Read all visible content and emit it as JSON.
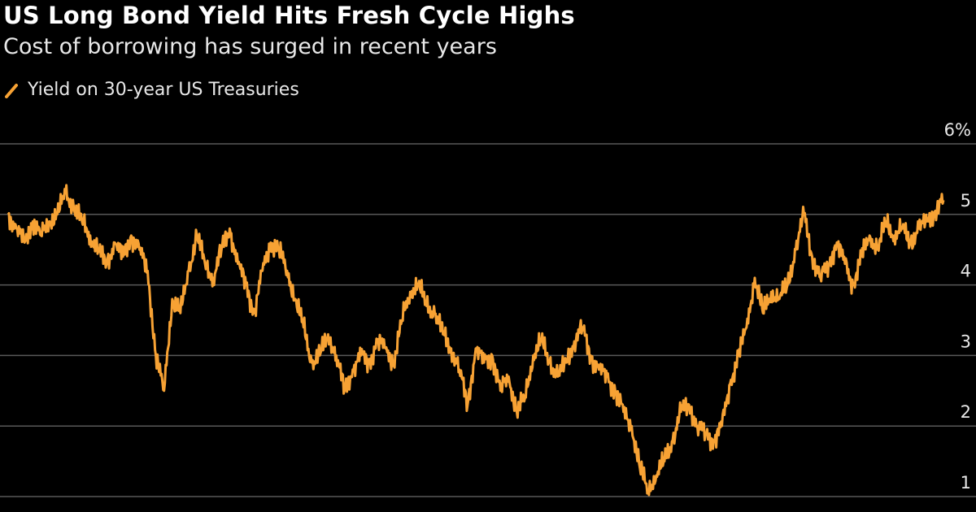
{
  "title": "US Long Bond Yield Hits Fresh Cycle Highs",
  "subtitle": "Cost of borrowing has surged in recent years",
  "colors": {
    "background": "#000000",
    "series": "#f7a234",
    "grid": "#595959",
    "text": "#e8e8e8"
  },
  "chart_data": {
    "type": "line",
    "title": "US Long Bond Yield Hits Fresh Cycle Highs",
    "subtitle": "Cost of borrowing has surged in recent years",
    "xlabel": "",
    "ylabel": "",
    "ylim": [
      1,
      6
    ],
    "yticks": [
      {
        "value": 6,
        "label": "6%"
      },
      {
        "value": 5,
        "label": "5"
      },
      {
        "value": 4,
        "label": "4"
      },
      {
        "value": 3,
        "label": "3"
      },
      {
        "value": 2,
        "label": "2"
      },
      {
        "value": 1,
        "label": "1"
      }
    ],
    "grid": true,
    "legend_position": "top-left",
    "series": [
      {
        "name": "Yield on 30-year US Treasuries",
        "color": "#f7a234",
        "values": [
          5.0,
          4.8,
          4.6,
          4.9,
          4.7,
          4.9,
          5.0,
          5.3,
          5.1,
          4.9,
          4.7,
          4.5,
          4.3,
          4.6,
          4.4,
          4.7,
          4.5,
          4.2,
          3.0,
          2.5,
          3.8,
          3.6,
          4.2,
          4.7,
          4.3,
          4.1,
          4.5,
          4.8,
          4.3,
          4.0,
          3.6,
          4.2,
          4.6,
          4.5,
          4.2,
          3.8,
          3.4,
          2.9,
          3.0,
          3.3,
          3.0,
          2.5,
          2.8,
          3.0,
          2.9,
          3.2,
          3.1,
          2.9,
          3.5,
          3.9,
          4.0,
          3.7,
          3.6,
          3.3,
          3.1,
          2.8,
          2.3,
          3.1,
          2.9,
          3.0,
          2.5,
          2.7,
          2.2,
          2.4,
          3.0,
          3.2,
          2.9,
          2.7,
          2.9,
          3.2,
          3.4,
          3.0,
          2.8,
          2.7,
          2.5,
          2.2,
          2.0,
          1.4,
          1.1,
          1.3,
          1.5,
          1.8,
          2.2,
          2.3,
          2.0,
          1.9,
          1.8,
          2.0,
          2.6,
          3.0,
          3.4,
          4.1,
          3.6,
          3.9,
          3.8,
          4.0,
          4.5,
          5.0,
          4.4,
          4.1,
          4.3,
          4.6,
          4.3,
          4.0,
          4.4,
          4.7,
          4.5,
          4.9,
          4.7,
          4.8,
          4.6,
          4.8,
          4.9,
          5.05,
          5.2
        ]
      }
    ]
  }
}
